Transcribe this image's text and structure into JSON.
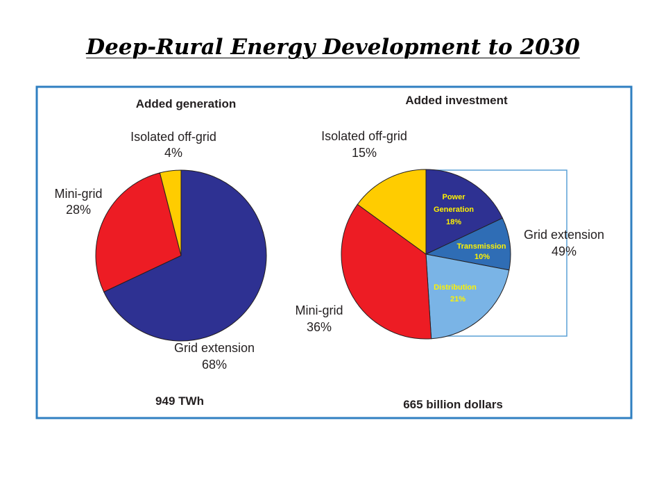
{
  "page": {
    "title": "Deep-Rural Energy Development to 2030"
  },
  "chart_data": [
    {
      "type": "pie",
      "title": "Added generation",
      "total": "949 TWh",
      "slices": [
        {
          "label": "Grid extension",
          "value": 68,
          "value_text": "68%",
          "color": "#2e3192"
        },
        {
          "label": "Mini-grid",
          "value": 28,
          "value_text": "28%",
          "color": "#ed1c24"
        },
        {
          "label": "Isolated off-grid",
          "value": 4,
          "value_text": "4%",
          "color": "#ffcc00"
        }
      ]
    },
    {
      "type": "pie",
      "title": "Added investment",
      "total": "665 billion dollars",
      "slices": [
        {
          "label": "Power Generation",
          "value": 18,
          "value_text": "18%",
          "color": "#2e3192",
          "label_color": "#fff200",
          "group": "Grid extension"
        },
        {
          "label": "Transmission",
          "value": 10,
          "value_text": "10%",
          "color": "#2f6db5",
          "label_color": "#fff200",
          "group": "Grid extension"
        },
        {
          "label": "Distribution",
          "value": 21,
          "value_text": "21%",
          "color": "#7ab4e6",
          "label_color": "#fff200",
          "group": "Grid extension"
        },
        {
          "label": "Mini-grid",
          "value": 36,
          "value_text": "36%",
          "color": "#ed1c24"
        },
        {
          "label": "Isolated off-grid",
          "value": 15,
          "value_text": "15%",
          "color": "#ffcc00"
        }
      ],
      "group_label": {
        "label": "Grid extension",
        "value_text": "49%"
      }
    }
  ],
  "colors": {
    "frame": "#2f7fc1",
    "bracket": "#5aa0d6"
  }
}
